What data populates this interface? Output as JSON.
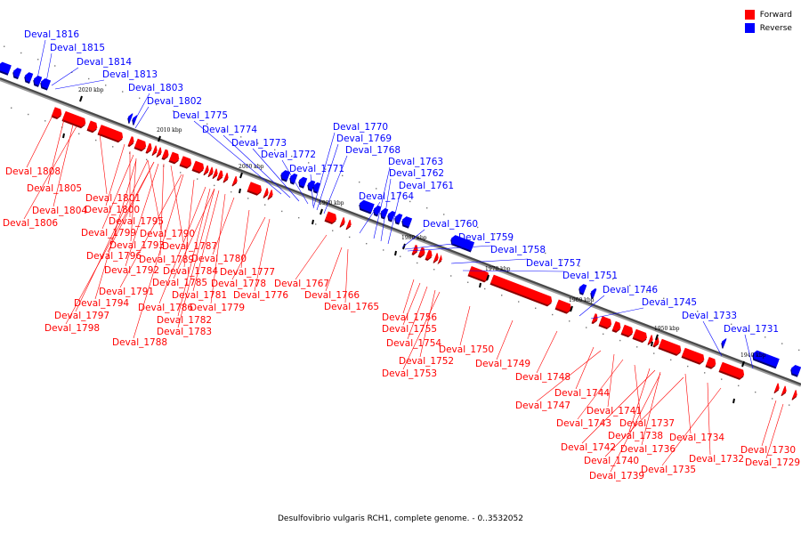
{
  "legend": {
    "forward_label": "Forward",
    "reverse_label": "Reverse",
    "forward_color": "#ff0000",
    "reverse_color": "#0000ff"
  },
  "caption": "Desulfovibrio vulgaris RCH1, complete genome. - 0..3532052",
  "ticks": [
    "2020 kbp",
    "2010 kbp",
    "2000 kbp",
    "1990 kbp",
    "1980 kbp",
    "1970 kbp",
    "1960 kbp",
    "1950 kbp",
    "1940 kbp"
  ],
  "reverse_labels": [
    "Deval_1816",
    "Deval_1815",
    "Deval_1814",
    "Deval_1813",
    "Deval_1803",
    "Deval_1802",
    "Deval_1775",
    "Deval_1774",
    "Deval_1773",
    "Deval_1772",
    "Deval_1771",
    "Deval_1770",
    "Deval_1769",
    "Deval_1768",
    "Deval_1763",
    "Deval_1762",
    "Deval_1761",
    "Deval_1764",
    "Deval_1760",
    "Deval_1759",
    "Deval_1758",
    "Deval_1757",
    "Deval_1751",
    "Deval_1746",
    "Deval_1745",
    "Deval_1733",
    "Deval_1731"
  ],
  "forward_labels": [
    "Deval_1808",
    "Deval_1805",
    "Deval_1804",
    "Deval_1806",
    "Deval_1801",
    "Deval_1800",
    "Deval_1795",
    "Deval_1799",
    "Deval_1793",
    "Deval_1790",
    "Deval_1796",
    "Deval_1787",
    "Deval_1789",
    "Deval_1792",
    "Deval_1780",
    "Deval_1784",
    "Deval_1791",
    "Deval_1777",
    "Deval_1785",
    "Deval_1778",
    "Deval_1776",
    "Deval_1767",
    "Deval_1781",
    "Deval_1794",
    "Deval_1786",
    "Deval_1779",
    "Deval_1766",
    "Deval_1797",
    "Deval_1782",
    "Deval_1765",
    "Deval_1798",
    "Deval_1783",
    "Deval_1788",
    "Deval_1756",
    "Deval_1755",
    "Deval_1754",
    "Deval_1750",
    "Deval_1752",
    "Deval_1749",
    "Deval_1753",
    "Deval_1748",
    "Deval_1744",
    "Deval_1747",
    "Deval_1741",
    "Deval_1743",
    "Deval_1737",
    "Deval_1738",
    "Deval_1734",
    "Deval_1742",
    "Deval_1736",
    "Deval_1740",
    "Deval_1732",
    "Deval_1735",
    "Deval_1739",
    "Deval_1730",
    "Deval_1729"
  ]
}
